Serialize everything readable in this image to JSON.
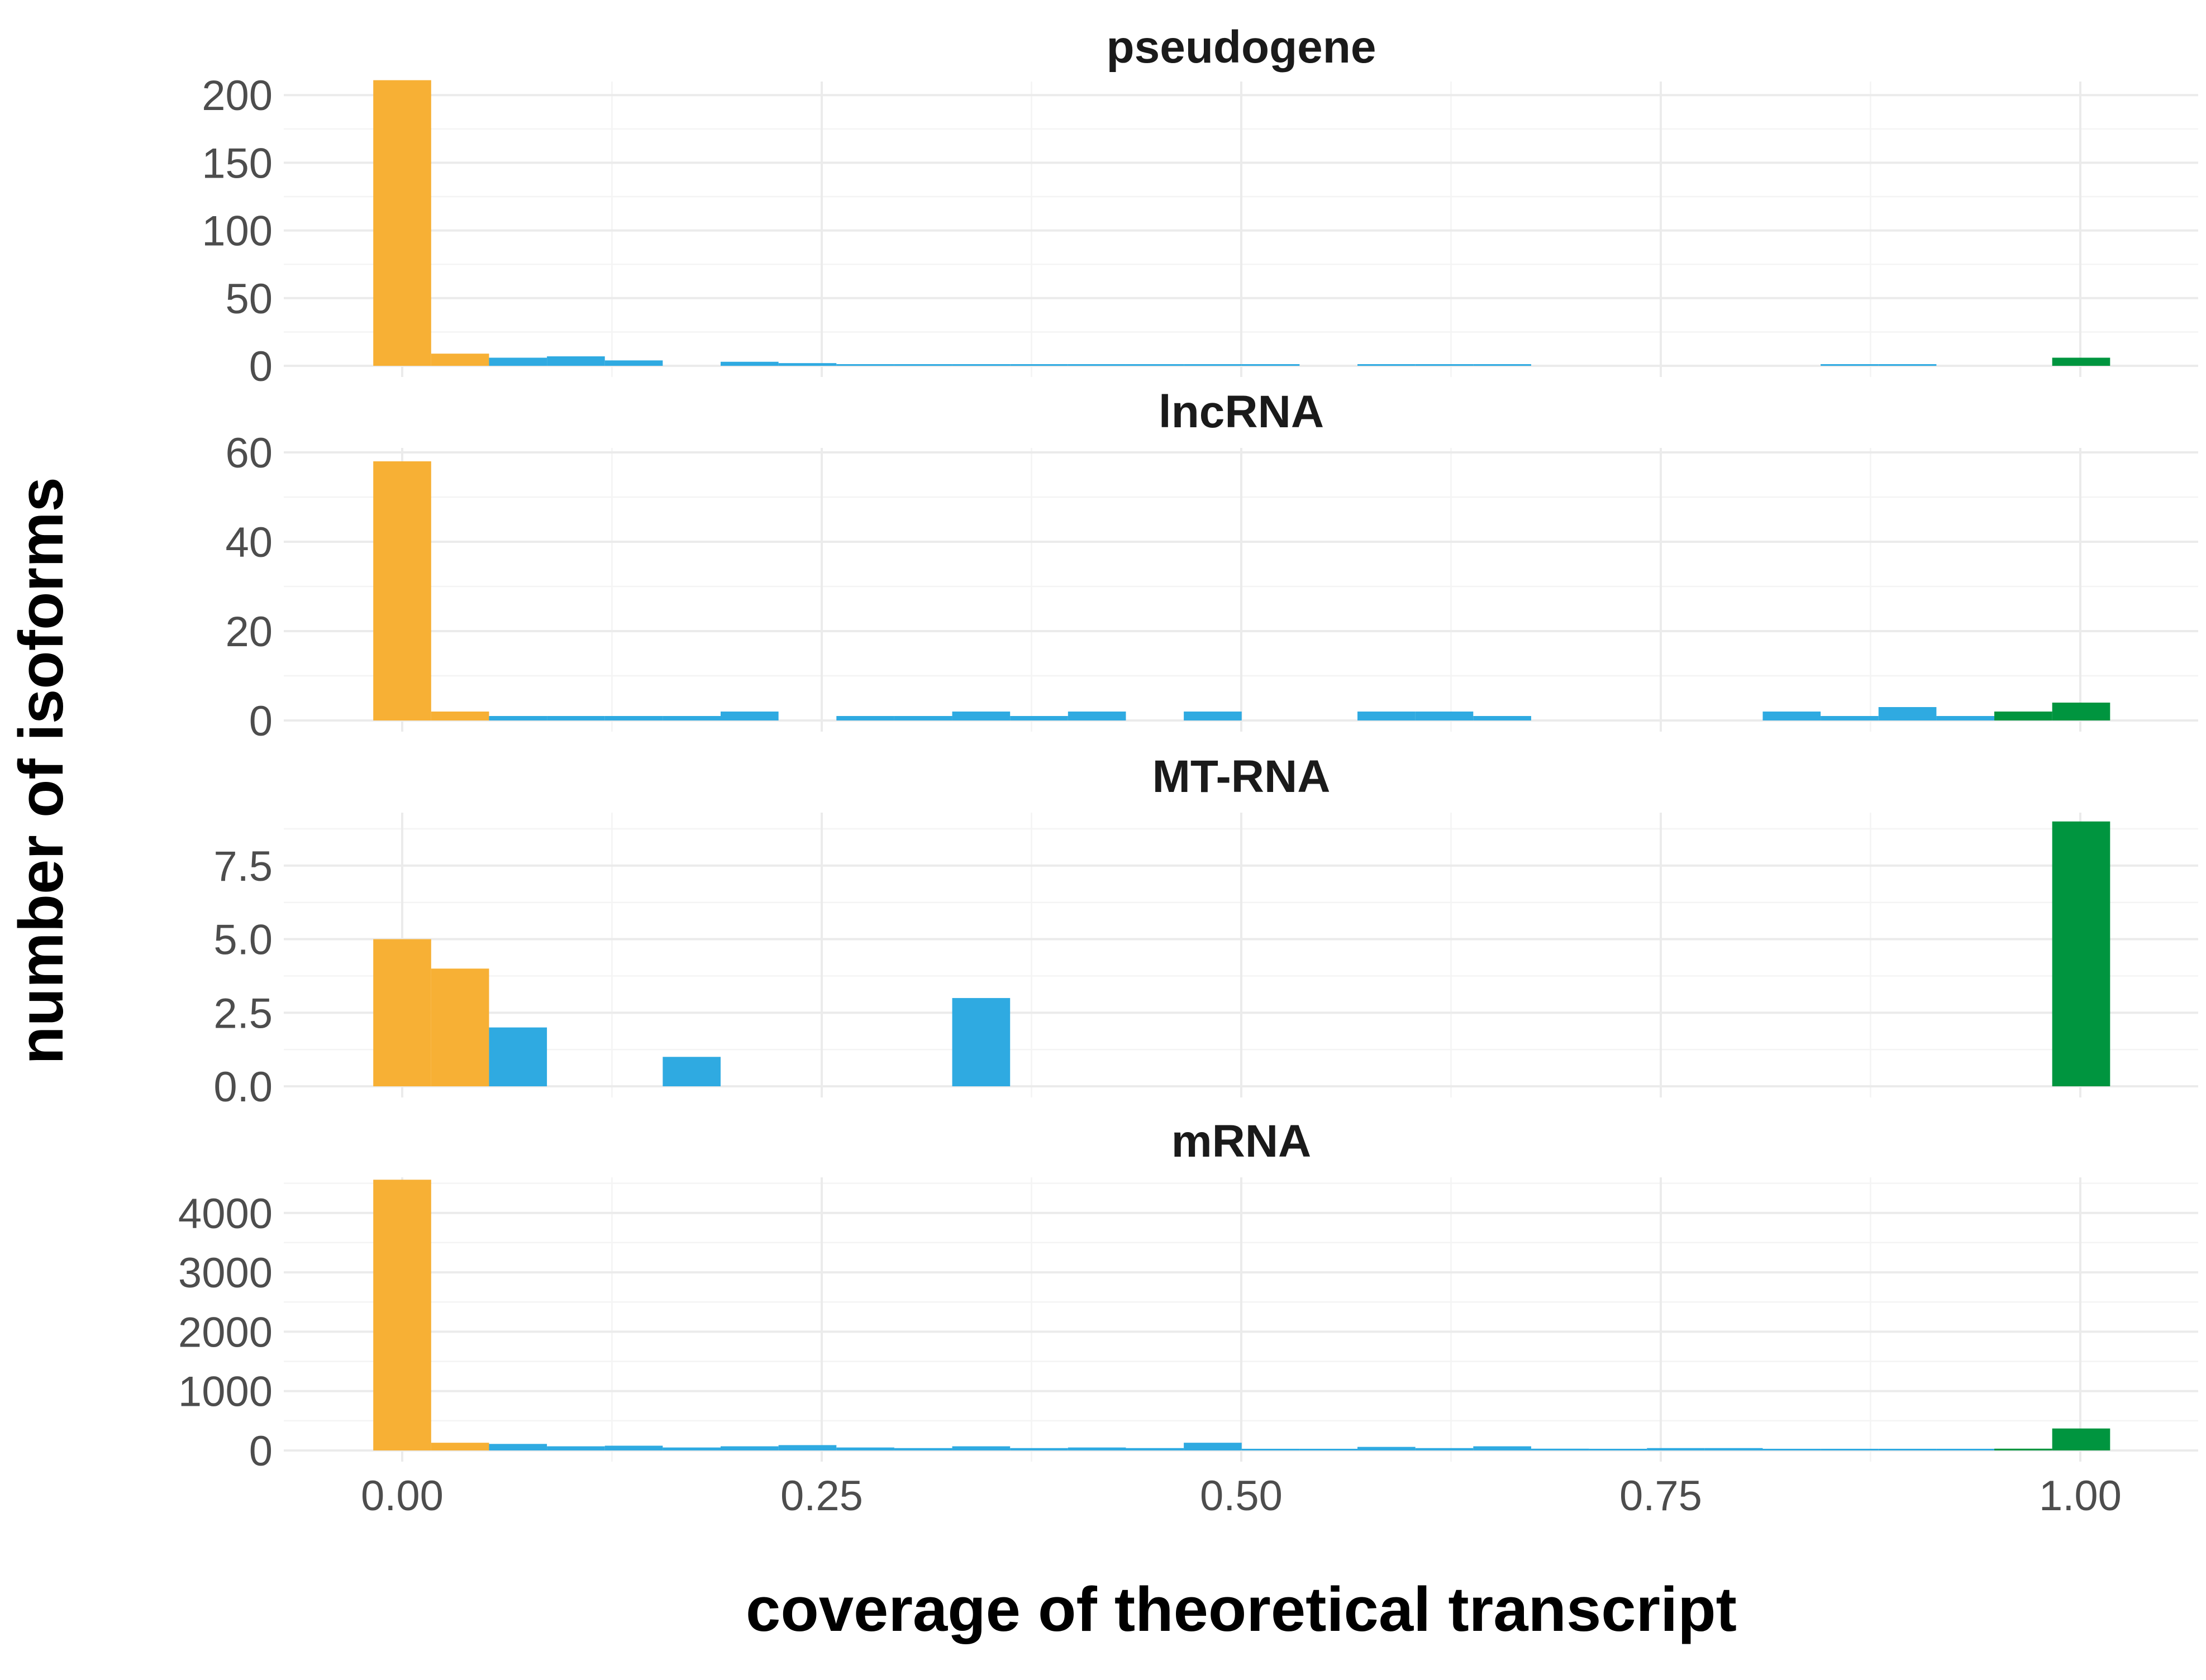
{
  "chart_data": {
    "type": "bar",
    "chart_kind": "faceted histogram",
    "xlabel": "coverage of theoretical transcript",
    "ylabel": "number of isoforms",
    "xlim": [
      -0.03,
      1.03
    ],
    "x_ticks": [
      0,
      0.25,
      0.5,
      0.75,
      1
    ],
    "x_tick_labels": [
      "0.00",
      "0.25",
      "0.50",
      "0.75",
      "1.00"
    ],
    "bin_width": 0.0345,
    "grid": true,
    "legend": "none",
    "colors": {
      "low_coverage": "#F7B035",
      "partial_coverage": "#2FAAE1",
      "full_coverage": "#00953F",
      "grid": "#EBEBEB",
      "tick_text": "#4D4D4D"
    },
    "panels": [
      {
        "title": "pseudogene",
        "ylim": [
          0,
          210
        ],
        "y_ticks": [
          0,
          50,
          100,
          150,
          200
        ],
        "y_tick_labels": [
          "0",
          "50",
          "100",
          "150",
          "200"
        ],
        "bins": [
          {
            "x": 0.0,
            "count": 211,
            "color": "low_coverage"
          },
          {
            "x": 0.0345,
            "count": 9,
            "color": "low_coverage"
          },
          {
            "x": 0.069,
            "count": 6,
            "color": "partial_coverage"
          },
          {
            "x": 0.1035,
            "count": 7,
            "color": "partial_coverage"
          },
          {
            "x": 0.138,
            "count": 4,
            "color": "partial_coverage"
          },
          {
            "x": 0.207,
            "count": 3,
            "color": "partial_coverage"
          },
          {
            "x": 0.2415,
            "count": 2,
            "color": "partial_coverage"
          },
          {
            "x": 0.276,
            "count": 1,
            "color": "partial_coverage"
          },
          {
            "x": 0.3105,
            "count": 1,
            "color": "partial_coverage"
          },
          {
            "x": 0.345,
            "count": 0.5,
            "color": "partial_coverage"
          },
          {
            "x": 0.3795,
            "count": 0.5,
            "color": "partial_coverage"
          },
          {
            "x": 0.414,
            "count": 1,
            "color": "partial_coverage"
          },
          {
            "x": 0.4485,
            "count": 0.5,
            "color": "partial_coverage"
          },
          {
            "x": 0.483,
            "count": 1,
            "color": "partial_coverage"
          },
          {
            "x": 0.5175,
            "count": 0.5,
            "color": "partial_coverage"
          },
          {
            "x": 0.5865,
            "count": 0.5,
            "color": "partial_coverage"
          },
          {
            "x": 0.621,
            "count": 0.5,
            "color": "partial_coverage"
          },
          {
            "x": 0.6555,
            "count": 1,
            "color": "partial_coverage"
          },
          {
            "x": 0.8625,
            "count": 0.5,
            "color": "partial_coverage"
          },
          {
            "x": 0.897,
            "count": 0.5,
            "color": "partial_coverage"
          },
          {
            "x": 1.0005,
            "count": 6,
            "color": "full_coverage"
          }
        ]
      },
      {
        "title": "lncRNA",
        "ylim": [
          0,
          61
        ],
        "y_ticks": [
          0,
          20,
          40,
          60
        ],
        "y_tick_labels": [
          "0",
          "20",
          "40",
          "60"
        ],
        "bins": [
          {
            "x": 0.0,
            "count": 58,
            "color": "low_coverage"
          },
          {
            "x": 0.0345,
            "count": 2,
            "color": "low_coverage"
          },
          {
            "x": 0.069,
            "count": 1,
            "color": "partial_coverage"
          },
          {
            "x": 0.1035,
            "count": 1,
            "color": "partial_coverage"
          },
          {
            "x": 0.138,
            "count": 1,
            "color": "partial_coverage"
          },
          {
            "x": 0.1725,
            "count": 1,
            "color": "partial_coverage"
          },
          {
            "x": 0.207,
            "count": 2,
            "color": "partial_coverage"
          },
          {
            "x": 0.276,
            "count": 1,
            "color": "partial_coverage"
          },
          {
            "x": 0.3105,
            "count": 1,
            "color": "partial_coverage"
          },
          {
            "x": 0.345,
            "count": 2,
            "color": "partial_coverage"
          },
          {
            "x": 0.3795,
            "count": 1,
            "color": "partial_coverage"
          },
          {
            "x": 0.414,
            "count": 2,
            "color": "partial_coverage"
          },
          {
            "x": 0.483,
            "count": 2,
            "color": "partial_coverage"
          },
          {
            "x": 0.5865,
            "count": 2,
            "color": "partial_coverage"
          },
          {
            "x": 0.621,
            "count": 2,
            "color": "partial_coverage"
          },
          {
            "x": 0.6555,
            "count": 1,
            "color": "partial_coverage"
          },
          {
            "x": 0.828,
            "count": 2,
            "color": "partial_coverage"
          },
          {
            "x": 0.8625,
            "count": 1,
            "color": "partial_coverage"
          },
          {
            "x": 0.897,
            "count": 3,
            "color": "partial_coverage"
          },
          {
            "x": 0.9315,
            "count": 1,
            "color": "partial_coverage"
          },
          {
            "x": 0.966,
            "count": 2,
            "color": "full_coverage"
          },
          {
            "x": 1.0005,
            "count": 4,
            "color": "full_coverage"
          }
        ]
      },
      {
        "title": "MT-RNA",
        "ylim": [
          0,
          9.3
        ],
        "y_ticks": [
          0,
          2.5,
          5,
          7.5
        ],
        "y_tick_labels": [
          "0.0",
          "2.5",
          "5.0",
          "7.5"
        ],
        "bins": [
          {
            "x": 0.0,
            "count": 5,
            "color": "low_coverage"
          },
          {
            "x": 0.0345,
            "count": 4,
            "color": "low_coverage"
          },
          {
            "x": 0.069,
            "count": 2,
            "color": "partial_coverage"
          },
          {
            "x": 0.1725,
            "count": 1,
            "color": "partial_coverage"
          },
          {
            "x": 0.345,
            "count": 3,
            "color": "partial_coverage"
          },
          {
            "x": 1.0005,
            "count": 9,
            "color": "full_coverage"
          }
        ]
      },
      {
        "title": "mRNA",
        "ylim": [
          0,
          4600
        ],
        "y_ticks": [
          0,
          1000,
          2000,
          3000,
          4000
        ],
        "y_tick_labels": [
          "0",
          "1000",
          "2000",
          "3000",
          "4000"
        ],
        "bins": [
          {
            "x": 0.0,
            "count": 4560,
            "color": "low_coverage"
          },
          {
            "x": 0.0345,
            "count": 130,
            "color": "low_coverage"
          },
          {
            "x": 0.069,
            "count": 110,
            "color": "partial_coverage"
          },
          {
            "x": 0.1035,
            "count": 70,
            "color": "partial_coverage"
          },
          {
            "x": 0.138,
            "count": 80,
            "color": "partial_coverage"
          },
          {
            "x": 0.1725,
            "count": 50,
            "color": "partial_coverage"
          },
          {
            "x": 0.207,
            "count": 70,
            "color": "partial_coverage"
          },
          {
            "x": 0.2415,
            "count": 90,
            "color": "partial_coverage"
          },
          {
            "x": 0.276,
            "count": 50,
            "color": "partial_coverage"
          },
          {
            "x": 0.3105,
            "count": 40,
            "color": "partial_coverage"
          },
          {
            "x": 0.345,
            "count": 70,
            "color": "partial_coverage"
          },
          {
            "x": 0.3795,
            "count": 40,
            "color": "partial_coverage"
          },
          {
            "x": 0.414,
            "count": 50,
            "color": "partial_coverage"
          },
          {
            "x": 0.4485,
            "count": 40,
            "color": "partial_coverage"
          },
          {
            "x": 0.483,
            "count": 130,
            "color": "partial_coverage"
          },
          {
            "x": 0.5175,
            "count": 20,
            "color": "partial_coverage"
          },
          {
            "x": 0.552,
            "count": 20,
            "color": "partial_coverage"
          },
          {
            "x": 0.5865,
            "count": 60,
            "color": "partial_coverage"
          },
          {
            "x": 0.621,
            "count": 40,
            "color": "partial_coverage"
          },
          {
            "x": 0.6555,
            "count": 70,
            "color": "partial_coverage"
          },
          {
            "x": 0.69,
            "count": 30,
            "color": "partial_coverage"
          },
          {
            "x": 0.7245,
            "count": 20,
            "color": "partial_coverage"
          },
          {
            "x": 0.759,
            "count": 40,
            "color": "partial_coverage"
          },
          {
            "x": 0.7935,
            "count": 40,
            "color": "partial_coverage"
          },
          {
            "x": 0.828,
            "count": 20,
            "color": "partial_coverage"
          },
          {
            "x": 0.8625,
            "count": 20,
            "color": "partial_coverage"
          },
          {
            "x": 0.897,
            "count": 20,
            "color": "partial_coverage"
          },
          {
            "x": 0.9315,
            "count": 10,
            "color": "partial_coverage"
          },
          {
            "x": 0.966,
            "count": 30,
            "color": "full_coverage"
          },
          {
            "x": 1.0005,
            "count": 370,
            "color": "full_coverage"
          }
        ]
      }
    ]
  }
}
